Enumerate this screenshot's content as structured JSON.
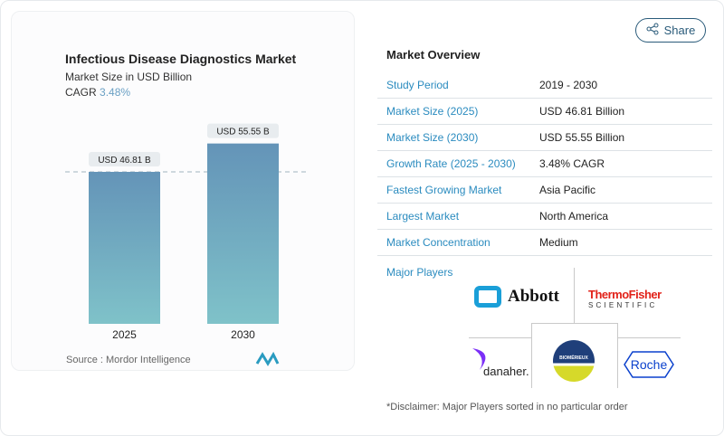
{
  "chart_data": {
    "type": "bar",
    "title": "Infectious Disease Diagnostics Market",
    "subtitle": "Market Size in USD Billion",
    "cagr_label": "CAGR",
    "cagr_value": "3.48%",
    "categories": [
      "2025",
      "2030"
    ],
    "values": [
      46.81,
      55.55
    ],
    "data_labels": [
      "USD 46.81 B",
      "USD 55.55 B"
    ],
    "ylim": [
      0,
      60
    ],
    "grid": false,
    "reference_line": "dashed at 2025 value",
    "bar_color_top": "#6494b8",
    "bar_color_bottom": "#7fc2c9"
  },
  "source": "Source :  Mordor Intelligence",
  "share_label": "Share",
  "overview": {
    "title": "Market Overview",
    "rows": [
      {
        "k": "Study Period",
        "v": "2019 - 2030"
      },
      {
        "k": "Market Size (2025)",
        "v": "USD 46.81 Billion"
      },
      {
        "k": "Market Size (2030)",
        "v": "USD 55.55 Billion"
      },
      {
        "k": "Growth Rate (2025 - 2030)",
        "v": "3.48% CAGR"
      },
      {
        "k": "Fastest Growing Market",
        "v": "Asia Pacific"
      },
      {
        "k": "Largest Market",
        "v": "North America"
      },
      {
        "k": "Market Concentration",
        "v": "Medium"
      }
    ]
  },
  "players": {
    "title": "Major Players",
    "logos": [
      "Abbott",
      "ThermoFisher SCIENTIFIC",
      "danaher",
      "BIOMÉRIEUX",
      "Roche"
    ],
    "disclaimer": "*Disclaimer: Major Players sorted in no particular order"
  }
}
